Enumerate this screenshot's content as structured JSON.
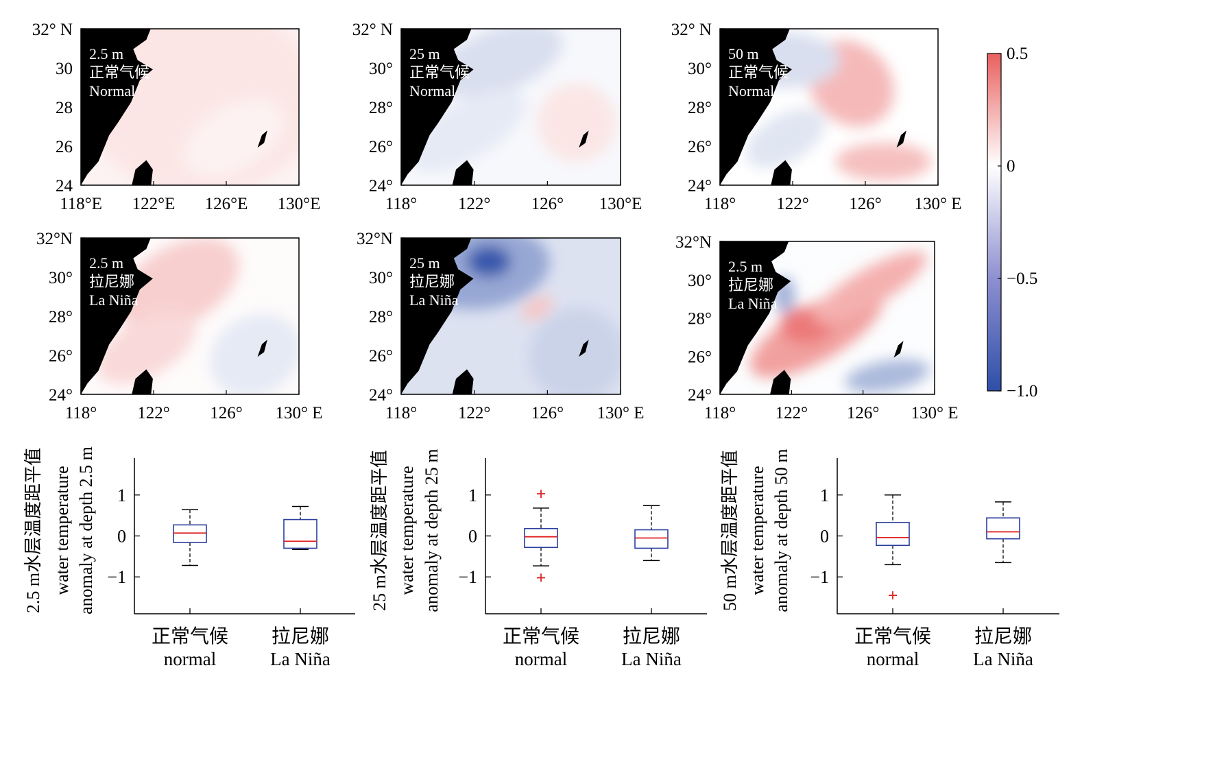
{
  "colors": {
    "positive": "#e8605f",
    "negative": "#2e4fa8",
    "land": "#000000",
    "box_edge": "#2b3f9e",
    "median": "#e02020",
    "outlier": "#e02020"
  },
  "colorbar": {
    "range": [
      -1.0,
      0.5
    ],
    "tick_labels": [
      "0.5",
      "0",
      "−0.5",
      "−1.0"
    ]
  },
  "chart_data": [
    {
      "type": "heatmap",
      "label_lines": [
        "2.5 m",
        "正常气候",
        "Normal"
      ],
      "xticks": [
        "118°E",
        "122°E",
        "126°E",
        "130°E"
      ],
      "yticks": [
        "32° N",
        "30",
        "28",
        "26",
        "24"
      ],
      "xlim": [
        118,
        130
      ],
      "ylim": [
        24,
        32
      ],
      "value_range": [
        0.0,
        0.15
      ]
    },
    {
      "type": "heatmap",
      "label_lines": [
        "25 m",
        "正常气候",
        "Normal"
      ],
      "xticks": [
        "118°",
        "122°",
        "126°",
        "130°E"
      ],
      "yticks": [
        "32° N",
        "30°",
        "28°",
        "26°",
        "24°"
      ],
      "xlim": [
        118,
        130
      ],
      "ylim": [
        24,
        32
      ],
      "value_range": [
        -0.3,
        0.15
      ]
    },
    {
      "type": "heatmap",
      "label_lines": [
        "50 m",
        "正常气候",
        "Normal"
      ],
      "xticks": [
        "118°",
        "122°",
        "126°",
        "130° E"
      ],
      "yticks": [
        "32° N",
        "30°",
        "28°",
        "26°",
        "24°"
      ],
      "xlim": [
        118,
        130
      ],
      "ylim": [
        24,
        32
      ],
      "value_range": [
        -0.3,
        0.3
      ]
    },
    {
      "type": "heatmap",
      "label_lines": [
        "2.5 m",
        "拉尼娜",
        "La Niña"
      ],
      "xticks": [
        "118°",
        "122°",
        "126°",
        "130° E"
      ],
      "yticks": [
        "32°N",
        "30°",
        "28°",
        "26°",
        "24°"
      ],
      "xlim": [
        118,
        130
      ],
      "ylim": [
        24,
        32
      ],
      "value_range": [
        -0.2,
        0.25
      ]
    },
    {
      "type": "heatmap",
      "label_lines": [
        "25 m",
        "拉尼娜",
        "La Niña"
      ],
      "xticks": [
        "118°",
        "122°",
        "126°",
        "130° E"
      ],
      "yticks": [
        "32°N",
        "30°",
        "28°",
        "26°",
        "24°"
      ],
      "xlim": [
        118,
        130
      ],
      "ylim": [
        24,
        32
      ],
      "value_range": [
        -0.95,
        0.3
      ]
    },
    {
      "type": "heatmap",
      "label_lines": [
        "2.5 m",
        "拉尼娜",
        "La Niña"
      ],
      "xticks": [
        "118°",
        "122°",
        "126°",
        "130° E"
      ],
      "yticks": [
        "32°N",
        "30°",
        "28°",
        "26°",
        "24°"
      ],
      "xlim": [
        118,
        130
      ],
      "ylim": [
        24,
        32
      ],
      "value_range": [
        -0.5,
        0.45
      ]
    },
    {
      "type": "box",
      "ylabel_lines": [
        "2.5 m水层温度距平值",
        "water temperature",
        "anomaly at depth 2.5 m"
      ],
      "categories": [
        {
          "zh": "正常气候",
          "en": "normal"
        },
        {
          "zh": "拉尼娜",
          "en": "La Niña"
        }
      ],
      "yticks": [
        1,
        0,
        -1
      ],
      "yticklabels": [
        "1",
        "0",
        "−1"
      ],
      "ylim": [
        -1.9,
        1.9
      ],
      "boxes": [
        {
          "whisker_low": -0.72,
          "q1": -0.16,
          "median": 0.07,
          "q3": 0.27,
          "whisker_high": 0.64,
          "outliers": []
        },
        {
          "whisker_low": -0.33,
          "q1": -0.3,
          "median": -0.13,
          "q3": 0.4,
          "whisker_high": 0.72,
          "outliers": []
        }
      ]
    },
    {
      "type": "box",
      "ylabel_lines": [
        "25 m水层温度距平值",
        "water temperature",
        "anomaly at depth 25 m"
      ],
      "categories": [
        {
          "zh": "正常气候",
          "en": "normal"
        },
        {
          "zh": "拉尼娜",
          "en": "La Niña"
        }
      ],
      "yticks": [
        1,
        0,
        -1
      ],
      "yticklabels": [
        "1",
        "0",
        "−1"
      ],
      "ylim": [
        -1.9,
        1.9
      ],
      "boxes": [
        {
          "whisker_low": -0.73,
          "q1": -0.28,
          "median": -0.02,
          "q3": 0.18,
          "whisker_high": 0.68,
          "outliers": [
            1.03,
            -1.02
          ]
        },
        {
          "whisker_low": -0.6,
          "q1": -0.3,
          "median": -0.05,
          "q3": 0.15,
          "whisker_high": 0.74,
          "outliers": []
        }
      ]
    },
    {
      "type": "box",
      "ylabel_lines": [
        "50 m水层温度距平值",
        "water temperature",
        "anomaly at depth 50 m"
      ],
      "categories": [
        {
          "zh": "正常气候",
          "en": "normal"
        },
        {
          "zh": "拉尼娜",
          "en": "La Niña"
        }
      ],
      "yticks": [
        1,
        0,
        -1
      ],
      "yticklabels": [
        "1",
        "0",
        "−1"
      ],
      "ylim": [
        -1.9,
        1.9
      ],
      "boxes": [
        {
          "whisker_low": -0.7,
          "q1": -0.23,
          "median": -0.04,
          "q3": 0.33,
          "whisker_high": 1.0,
          "outliers": [
            -1.45
          ]
        },
        {
          "whisker_low": -0.65,
          "q1": -0.07,
          "median": 0.1,
          "q3": 0.44,
          "whisker_high": 0.83,
          "outliers": []
        }
      ]
    }
  ]
}
